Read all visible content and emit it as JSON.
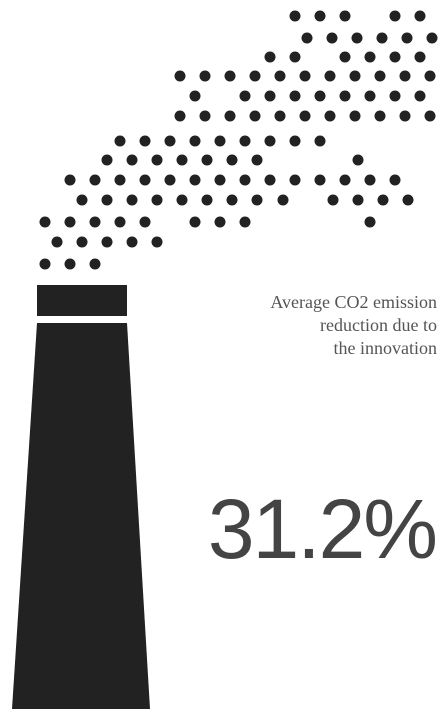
{
  "caption": [
    "Average CO2 emission",
    "reduction due to",
    "the innovation"
  ],
  "stat": "31.2%"
}
